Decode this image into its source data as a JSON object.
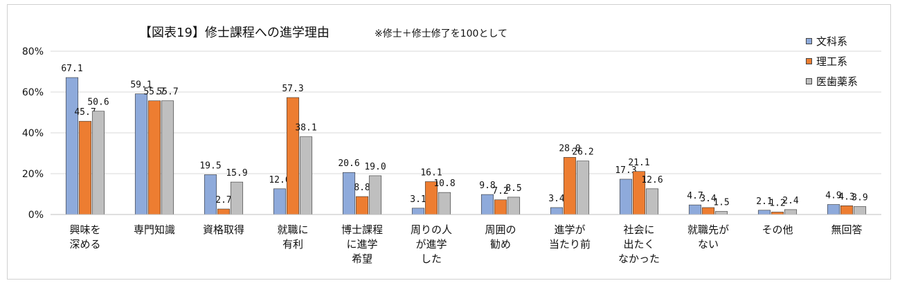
{
  "chart_data": {
    "type": "bar",
    "title": "【図表19】修士課程への進学理由",
    "subtitle": "※修士＋修士修了を100として",
    "xlabel": "",
    "ylabel": "",
    "ylim": [
      0,
      80
    ],
    "yticks": [
      "0%",
      "20%",
      "40%",
      "60%",
      "80%"
    ],
    "grid": true,
    "legend_position": "top-right",
    "categories": [
      [
        "興味を",
        "深める"
      ],
      [
        "専門知識"
      ],
      [
        "資格取得"
      ],
      [
        "就職に",
        "有利"
      ],
      [
        "博士課程",
        "に進学",
        "希望"
      ],
      [
        "周りの人",
        "が進学",
        "した"
      ],
      [
        "周囲の",
        "勧め"
      ],
      [
        "進学が",
        "当たり前"
      ],
      [
        "社会に",
        "出たく",
        "なかった"
      ],
      [
        "就職先が",
        "ない"
      ],
      [
        "その他"
      ],
      [
        "無回答"
      ]
    ],
    "series": [
      {
        "name": "文科系",
        "color": "#8eaadb",
        "values": [
          67.1,
          59.1,
          19.5,
          12.6,
          20.6,
          3.1,
          9.8,
          3.4,
          17.3,
          4.7,
          2.1,
          4.9
        ],
        "labels": [
          "67.1",
          "59.1",
          "19.5",
          "12.6",
          "20.6",
          "3.1",
          "9.8",
          "3.4",
          "17.3",
          "4.7",
          "2.1",
          "4.9"
        ]
      },
      {
        "name": "理工系",
        "color": "#ed7d31",
        "values": [
          45.7,
          55.7,
          2.7,
          57.3,
          8.8,
          16.1,
          7.2,
          28.0,
          21.1,
          3.4,
          1.2,
          4.3
        ],
        "labels": [
          "45.7",
          "55.7",
          "2.7",
          "57.3",
          "8.8",
          "16.1",
          "7.2",
          "28.0",
          "21.1",
          "3.4",
          "1.2",
          "4.3"
        ]
      },
      {
        "name": "医歯薬系",
        "color": "#bfbfbf",
        "values": [
          50.6,
          55.7,
          15.9,
          38.1,
          19.0,
          10.8,
          8.5,
          26.2,
          12.6,
          1.5,
          2.4,
          3.9
        ],
        "labels": [
          "50.6",
          "55.7",
          "15.9",
          "38.1",
          "19.0",
          "10.8",
          "8.5",
          "26.2",
          "12.6",
          "1.5",
          "2.4",
          "3.9"
        ]
      }
    ]
  }
}
